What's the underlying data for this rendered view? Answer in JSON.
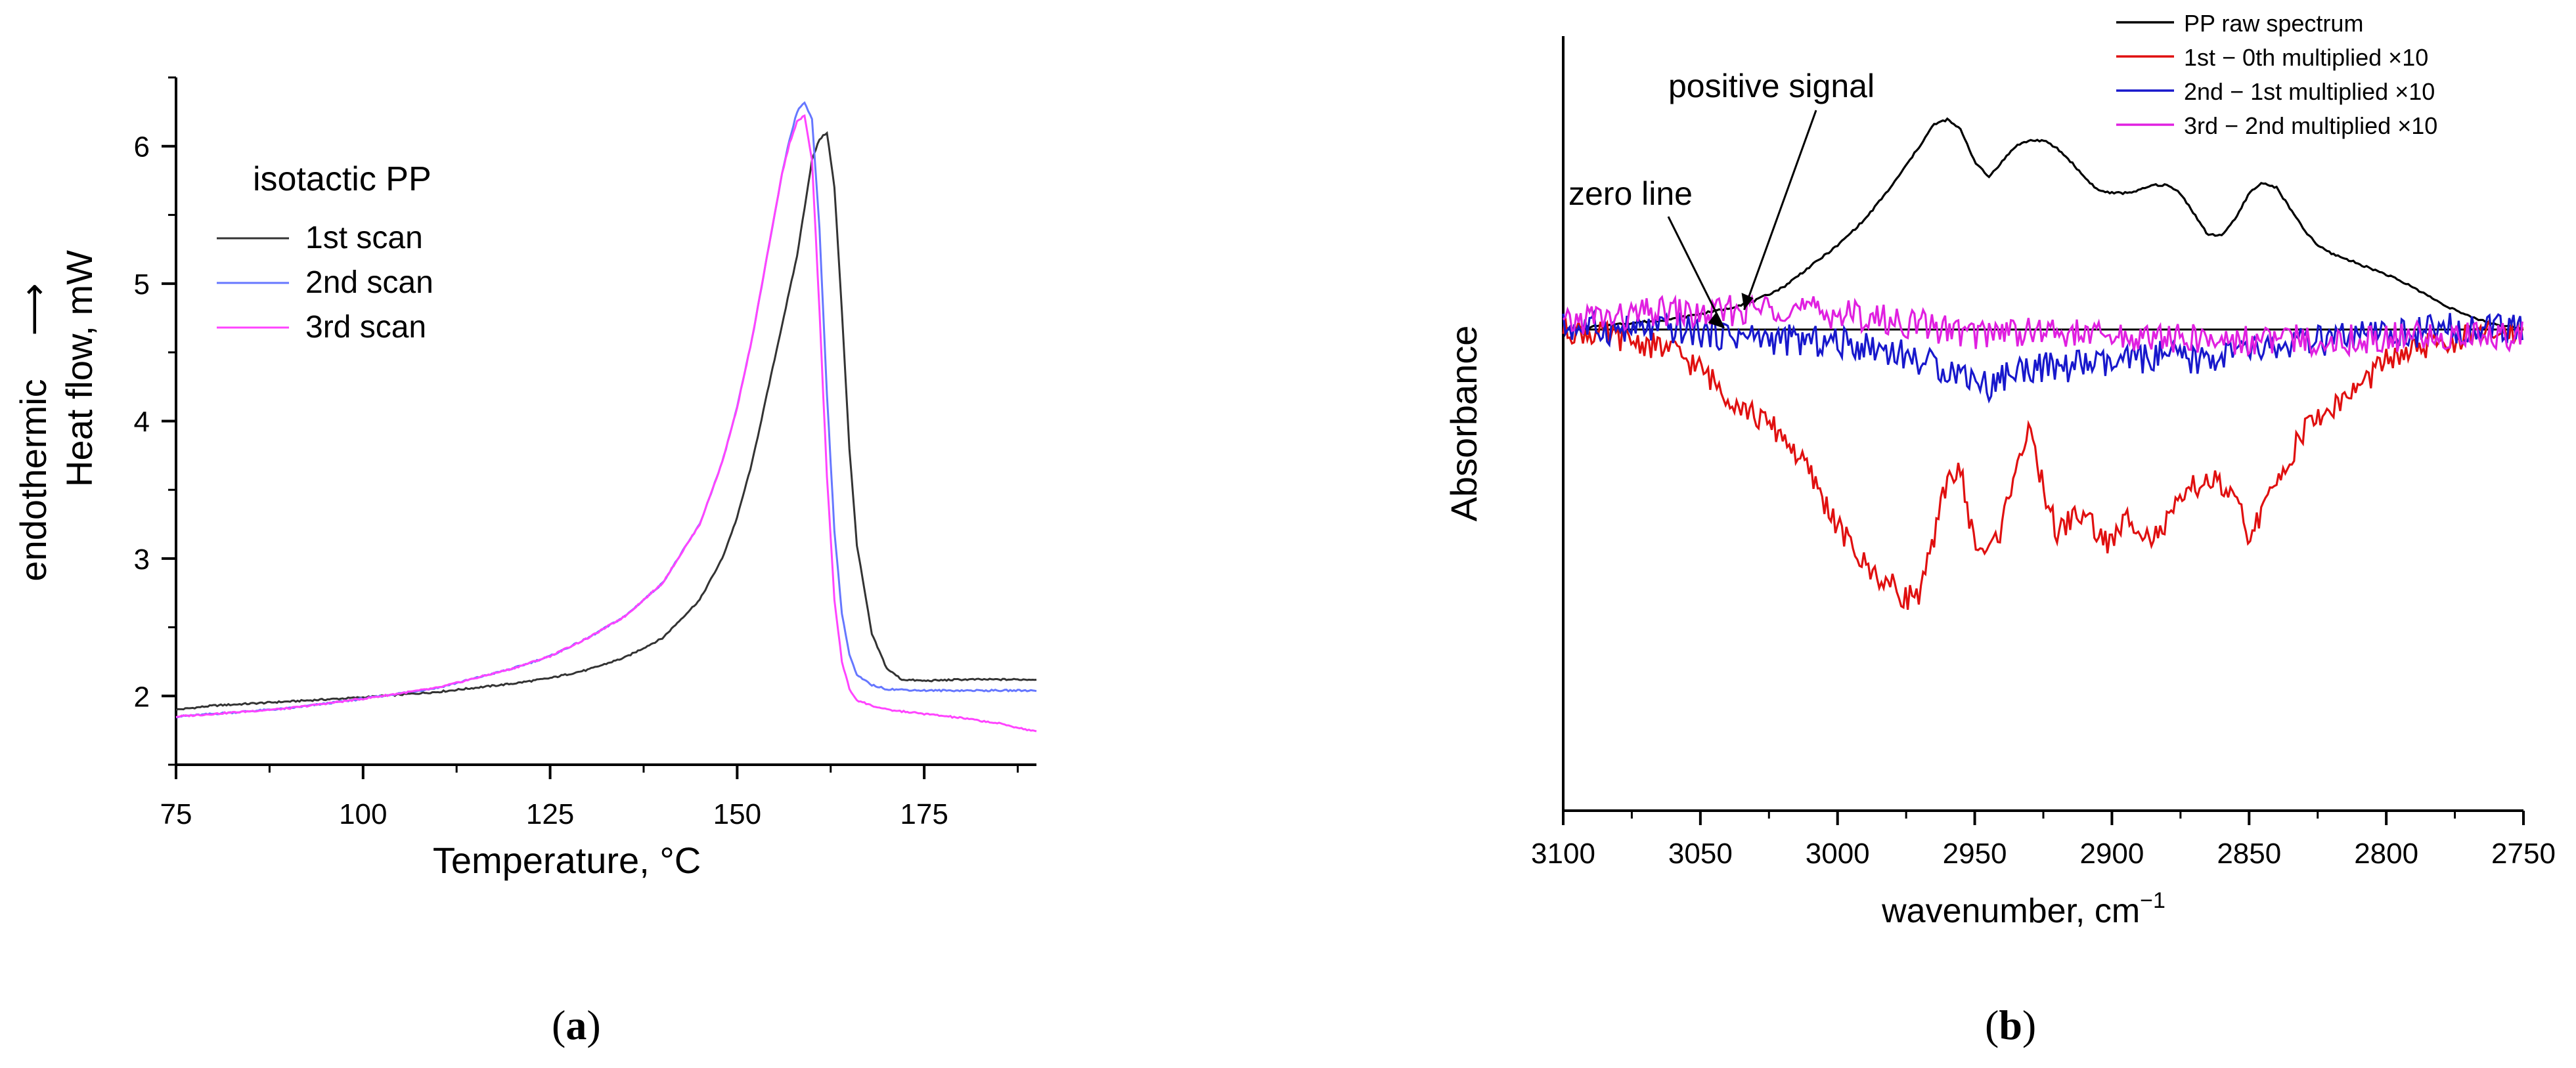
{
  "chart_data": [
    {
      "panel": "a",
      "type": "line",
      "ylabel_line1": "endothermic",
      "ylabel_arrow": "⟶",
      "ylabel_line2": "Heat flow, mW",
      "xlabel": "Temperature, °C",
      "xlim": [
        75,
        190
      ],
      "ylim": [
        1.5,
        6.5
      ],
      "xticks": [
        75,
        100,
        125,
        150,
        175
      ],
      "yticks": [
        2,
        3,
        4,
        5,
        6
      ],
      "legend_title": "isotactic PP",
      "legend_position": "top-left",
      "series": [
        {
          "name": "1st scan",
          "color": "#333333",
          "x": [
            75,
            80,
            90,
            100,
            110,
            120,
            125,
            130,
            135,
            140,
            145,
            148,
            150,
            152,
            154,
            156,
            158,
            159,
            160,
            161,
            162,
            163,
            164,
            165,
            166,
            168,
            170,
            172,
            175,
            180,
            185,
            190
          ],
          "y": [
            1.9,
            1.93,
            1.96,
            1.99,
            2.03,
            2.09,
            2.13,
            2.19,
            2.28,
            2.42,
            2.7,
            3.0,
            3.3,
            3.7,
            4.2,
            4.7,
            5.2,
            5.55,
            5.9,
            6.05,
            6.1,
            5.7,
            4.8,
            3.8,
            3.1,
            2.45,
            2.2,
            2.12,
            2.11,
            2.12,
            2.12,
            2.12
          ]
        },
        {
          "name": "2nd scan",
          "color": "#6677ff",
          "x": [
            75,
            80,
            90,
            100,
            110,
            120,
            125,
            130,
            135,
            140,
            145,
            148,
            150,
            152,
            154,
            156,
            157,
            158,
            159,
            160,
            161,
            162,
            163,
            164,
            165,
            166,
            168,
            170,
            175,
            180,
            185,
            190
          ],
          "y": [
            1.85,
            1.87,
            1.91,
            1.98,
            2.06,
            2.2,
            2.29,
            2.42,
            2.58,
            2.82,
            3.25,
            3.7,
            4.1,
            4.6,
            5.2,
            5.8,
            6.05,
            6.25,
            6.32,
            6.2,
            5.4,
            4.2,
            3.2,
            2.6,
            2.3,
            2.15,
            2.08,
            2.05,
            2.04,
            2.04,
            2.04,
            2.04
          ]
        },
        {
          "name": "3rd scan",
          "color": "#ff44ff",
          "x": [
            75,
            80,
            90,
            100,
            110,
            120,
            125,
            130,
            135,
            140,
            145,
            148,
            150,
            152,
            154,
            156,
            157,
            158,
            159,
            160,
            161,
            162,
            163,
            164,
            165,
            166,
            168,
            170,
            175,
            180,
            185,
            190
          ],
          "y": [
            1.85,
            1.87,
            1.91,
            1.98,
            2.06,
            2.2,
            2.29,
            2.42,
            2.58,
            2.82,
            3.25,
            3.7,
            4.1,
            4.6,
            5.2,
            5.8,
            6.02,
            6.18,
            6.22,
            5.9,
            4.8,
            3.6,
            2.7,
            2.25,
            2.05,
            1.97,
            1.93,
            1.9,
            1.87,
            1.84,
            1.8,
            1.74
          ]
        }
      ]
    },
    {
      "panel": "b",
      "type": "line",
      "ylabel": "Absorbance",
      "xlabel": "wavenumber, cm",
      "xlabel_sup": "−1",
      "xlim": [
        3100,
        2750
      ],
      "ylim": [
        -1.0,
        1.0
      ],
      "xticks": [
        3100,
        3050,
        3000,
        2950,
        2900,
        2850,
        2800,
        2750
      ],
      "legend_position": "top-right",
      "annotations": [
        {
          "text": "positive signal",
          "points_to": [
            3035,
            0.05
          ]
        },
        {
          "text": "zero line",
          "points_to": [
            3040,
            -0.01
          ]
        }
      ],
      "zero_line": 0.0,
      "series": [
        {
          "name": "PP raw spectrum",
          "color": "#000000",
          "x": [
            3100,
            3080,
            3060,
            3050,
            3040,
            3030,
            3020,
            3010,
            3000,
            2990,
            2980,
            2970,
            2965,
            2960,
            2955,
            2950,
            2945,
            2940,
            2935,
            2930,
            2925,
            2920,
            2915,
            2910,
            2905,
            2900,
            2895,
            2890,
            2885,
            2880,
            2875,
            2870,
            2865,
            2860,
            2855,
            2850,
            2845,
            2840,
            2835,
            2830,
            2825,
            2820,
            2810,
            2800,
            2790,
            2780,
            2770,
            2760,
            2750
          ],
          "y": [
            0.0,
            0.02,
            0.04,
            0.06,
            0.08,
            0.11,
            0.16,
            0.24,
            0.32,
            0.42,
            0.55,
            0.7,
            0.78,
            0.8,
            0.76,
            0.64,
            0.58,
            0.64,
            0.7,
            0.72,
            0.72,
            0.69,
            0.64,
            0.58,
            0.53,
            0.52,
            0.52,
            0.53,
            0.55,
            0.55,
            0.52,
            0.44,
            0.36,
            0.36,
            0.42,
            0.52,
            0.56,
            0.54,
            0.46,
            0.38,
            0.32,
            0.29,
            0.25,
            0.21,
            0.16,
            0.1,
            0.05,
            0.02,
            0.0
          ]
        },
        {
          "name": "1st − 0th multiplied ×10",
          "color": "#e01010",
          "x": [
            3100,
            3080,
            3060,
            3050,
            3040,
            3030,
            3020,
            3010,
            3000,
            2990,
            2980,
            2975,
            2970,
            2965,
            2960,
            2955,
            2950,
            2945,
            2940,
            2935,
            2930,
            2925,
            2920,
            2915,
            2910,
            2905,
            2900,
            2895,
            2890,
            2885,
            2880,
            2875,
            2870,
            2865,
            2860,
            2855,
            2850,
            2845,
            2840,
            2835,
            2830,
            2820,
            2810,
            2800,
            2790,
            2780,
            2770,
            2760,
            2750
          ],
          "y": [
            0.0,
            -0.03,
            -0.08,
            -0.15,
            -0.25,
            -0.33,
            -0.4,
            -0.55,
            -0.75,
            -0.9,
            -0.98,
            -1.02,
            -1.0,
            -0.82,
            -0.55,
            -0.55,
            -0.82,
            -0.85,
            -0.75,
            -0.5,
            -0.4,
            -0.6,
            -0.78,
            -0.72,
            -0.7,
            -0.78,
            -0.82,
            -0.72,
            -0.74,
            -0.8,
            -0.74,
            -0.66,
            -0.6,
            -0.57,
            -0.6,
            -0.66,
            -0.78,
            -0.7,
            -0.58,
            -0.48,
            -0.38,
            -0.3,
            -0.22,
            -0.12,
            -0.08,
            -0.05,
            -0.03,
            -0.01,
            0.0
          ]
        },
        {
          "name": "2nd − 1st multiplied ×10",
          "color": "#1818cc",
          "x": [
            3100,
            3080,
            3060,
            3040,
            3020,
            3000,
            2990,
            2980,
            2970,
            2960,
            2950,
            2945,
            2940,
            2930,
            2920,
            2910,
            2900,
            2890,
            2880,
            2870,
            2860,
            2850,
            2840,
            2830,
            2820,
            2810,
            2800,
            2790,
            2780,
            2770,
            2760,
            2750
          ],
          "y": [
            0.01,
            0.0,
            0.0,
            -0.02,
            -0.04,
            -0.05,
            -0.06,
            -0.08,
            -0.12,
            -0.15,
            -0.18,
            -0.22,
            -0.18,
            -0.14,
            -0.15,
            -0.13,
            -0.14,
            -0.11,
            -0.1,
            -0.12,
            -0.1,
            -0.08,
            -0.07,
            -0.05,
            -0.04,
            -0.03,
            -0.02,
            -0.01,
            0.0,
            0.01,
            0.0,
            0.0
          ]
        },
        {
          "name": "3rd − 2nd multiplied ×10",
          "color": "#e020e0",
          "x": [
            3100,
            3090,
            3080,
            3070,
            3060,
            3050,
            3040,
            3030,
            3020,
            3010,
            3000,
            2990,
            2980,
            2970,
            2960,
            2950,
            2940,
            2930,
            2920,
            2910,
            2900,
            2890,
            2880,
            2870,
            2860,
            2850,
            2840,
            2830,
            2820,
            2810,
            2800,
            2790,
            2780,
            2770,
            2760,
            2750
          ],
          "y": [
            0.01,
            0.05,
            0.04,
            0.06,
            0.07,
            0.05,
            0.07,
            0.08,
            0.09,
            0.07,
            0.06,
            0.05,
            0.03,
            0.02,
            0.0,
            -0.02,
            0.0,
            -0.01,
            -0.01,
            -0.02,
            -0.03,
            -0.03,
            -0.03,
            -0.04,
            -0.04,
            -0.04,
            -0.04,
            -0.04,
            -0.04,
            -0.04,
            -0.03,
            -0.03,
            -0.03,
            -0.02,
            -0.02,
            -0.02
          ]
        }
      ]
    }
  ],
  "captions": {
    "a": "a",
    "b": "b"
  }
}
